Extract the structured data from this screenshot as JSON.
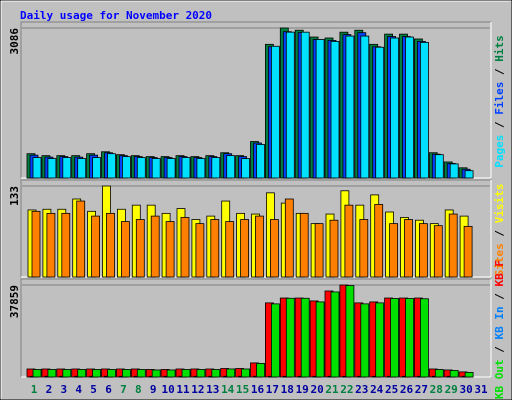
{
  "chart_data": [
    {
      "type": "bar",
      "title": "Daily usage for November 2020",
      "series": [
        {
          "name": "Hits",
          "color": "#008040",
          "values": [
            500,
            460,
            460,
            460,
            500,
            540,
            480,
            460,
            440,
            440,
            460,
            440,
            460,
            520,
            460,
            750,
            2750,
            3086,
            3040,
            2900,
            2880,
            3000,
            3040,
            2750,
            2960,
            2960,
            2860,
            520,
            330,
            210,
            0
          ]
        },
        {
          "name": "Files",
          "color": "#0040ff",
          "values": [
            470,
            430,
            440,
            430,
            470,
            520,
            460,
            440,
            420,
            420,
            440,
            420,
            440,
            500,
            440,
            720,
            2700,
            3010,
            2990,
            2850,
            2830,
            2950,
            2990,
            2700,
            2910,
            2910,
            2810,
            490,
            300,
            180,
            0
          ]
        },
        {
          "name": "Pages",
          "color": "#00e0ff",
          "values": [
            420,
            400,
            420,
            400,
            420,
            500,
            440,
            420,
            400,
            400,
            420,
            400,
            420,
            460,
            400,
            690,
            2710,
            3000,
            3000,
            2850,
            2810,
            2920,
            2920,
            2690,
            2880,
            2900,
            2790,
            480,
            290,
            150,
            0
          ]
        }
      ],
      "ylim": [
        0,
        3086
      ],
      "yticks": [
        3086
      ],
      "grid": true
    },
    {
      "type": "bar",
      "series": [
        {
          "name": "Visits",
          "color": "#ffff00",
          "values": [
            98,
            99,
            99,
            114,
            96,
            133,
            99,
            105,
            105,
            93,
            100,
            84,
            89,
            111,
            93,
            92,
            123,
            108,
            93,
            78,
            92,
            126,
            105,
            120,
            95,
            87,
            83,
            78,
            98,
            89,
            0
          ]
        },
        {
          "name": "Sites",
          "color": "#ff8000",
          "values": [
            96,
            93,
            93,
            111,
            89,
            93,
            81,
            84,
            89,
            81,
            87,
            78,
            84,
            81,
            84,
            89,
            84,
            114,
            93,
            78,
            83,
            105,
            84,
            106,
            78,
            84,
            78,
            75,
            92,
            74,
            0
          ]
        }
      ],
      "ylim": [
        0,
        133
      ],
      "yticks": [
        133
      ],
      "grid": true
    },
    {
      "type": "bar",
      "categories": [
        "1",
        "2",
        "3",
        "4",
        "5",
        "6",
        "7",
        "8",
        "9",
        "10",
        "11",
        "12",
        "13",
        "14",
        "15",
        "16",
        "17",
        "18",
        "19",
        "20",
        "21",
        "22",
        "23",
        "24",
        "25",
        "26",
        "27",
        "28",
        "29",
        "30",
        "31"
      ],
      "category_colors": [
        "#008040",
        "#0000a0",
        "#0000a0",
        "#0000a0",
        "#0000a0",
        "#0000a0",
        "#008040",
        "#008040",
        "#0000a0",
        "#0000a0",
        "#0000a0",
        "#0000a0",
        "#0000a0",
        "#008040",
        "#008040",
        "#0000a0",
        "#0000a0",
        "#0000a0",
        "#0000a0",
        "#0000a0",
        "#008040",
        "#008040",
        "#0000a0",
        "#0000a0",
        "#0000a0",
        "#0000a0",
        "#0000a0",
        "#008040",
        "#008040",
        "#0000a0",
        "#0000a0"
      ],
      "series": [
        {
          "name": "KB F",
          "color": "#ff0000",
          "values": [
            3300,
            3300,
            3300,
            3300,
            3300,
            3300,
            3300,
            3300,
            3100,
            3100,
            3300,
            3300,
            3300,
            3500,
            3500,
            5800,
            30500,
            32500,
            32500,
            31300,
            35400,
            37859,
            30500,
            30900,
            32500,
            32500,
            32500,
            3300,
            2900,
            2100,
            0
          ]
        },
        {
          "name": "KB In",
          "color": "#0080ff",
          "values": [
            300,
            300,
            300,
            300,
            300,
            300,
            300,
            300,
            300,
            300,
            300,
            300,
            300,
            300,
            300,
            300,
            300,
            300,
            300,
            300,
            300,
            300,
            300,
            300,
            300,
            300,
            300,
            300,
            300,
            300,
            0
          ]
        },
        {
          "name": "KB Out",
          "color": "#00e000",
          "values": [
            3100,
            3100,
            3100,
            3100,
            3100,
            3100,
            3100,
            3100,
            2900,
            2900,
            3100,
            3100,
            3100,
            3300,
            3300,
            5600,
            30100,
            32400,
            32400,
            30900,
            35000,
            37600,
            30100,
            30500,
            32300,
            32300,
            32200,
            3100,
            2700,
            1900,
            0
          ]
        }
      ],
      "ylim": [
        0,
        37859
      ],
      "yticks": [
        37859
      ],
      "grid": true
    }
  ]
}
